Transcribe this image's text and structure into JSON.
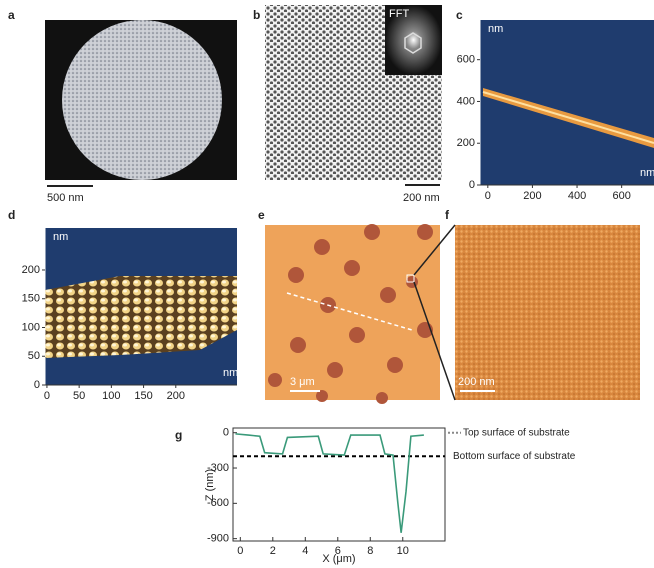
{
  "panels": {
    "a": {
      "label": "a",
      "scale_bar": "500 nm"
    },
    "b": {
      "label": "b",
      "inset": "FFT",
      "scale_bar": "200 nm"
    },
    "c": {
      "label": "c",
      "y_unit": "nm",
      "x_unit": "nm",
      "xlim": [
        -35,
        745
      ],
      "ylim": [
        0,
        790
      ],
      "xticks": [
        0,
        200,
        400,
        600
      ],
      "yticks": [
        0,
        200,
        400,
        600
      ]
    },
    "d": {
      "label": "d",
      "y_unit": "nm",
      "x_unit": "nm",
      "xlim": [
        -3,
        295
      ],
      "ylim": [
        0,
        273
      ],
      "xticks": [
        0,
        50,
        100,
        150,
        200
      ],
      "yticks": [
        0,
        50,
        100,
        150,
        200
      ]
    },
    "e": {
      "label": "e",
      "scale_bar": "3 μm"
    },
    "f": {
      "label": "f",
      "scale_bar": "200 nm"
    },
    "g": {
      "label": "g"
    }
  },
  "chart_data": {
    "type": "line",
    "x_label": "X (μm)",
    "y_label": "Z (nm)",
    "x": [
      -0.3,
      0.5,
      1.2,
      1.5,
      2.6,
      2.9,
      4.8,
      5.1,
      6.4,
      6.8,
      8.6,
      8.9,
      9.4,
      9.7,
      9.9,
      10.2,
      10.5,
      11.3
    ],
    "series": [
      {
        "color": "#3a9a7a",
        "values": [
          -10,
          -20,
          -30,
          -170,
          -180,
          -40,
          -30,
          -180,
          -190,
          -20,
          -20,
          -180,
          -190,
          -600,
          -850,
          -500,
          -30,
          -20
        ]
      }
    ],
    "xlim": [
      -0.45,
      12.6
    ],
    "ylim": [
      -920,
      40
    ],
    "xticks": [
      0,
      2,
      4,
      6,
      8,
      10
    ],
    "yticks": [
      0,
      -300,
      -600,
      -900
    ],
    "reference_lines": [
      {
        "value": 0,
        "label": "Top surface of substrate",
        "color": "#888888"
      },
      {
        "value": -200,
        "label": "Bottom surface of substrate",
        "color": "#000000"
      }
    ]
  }
}
